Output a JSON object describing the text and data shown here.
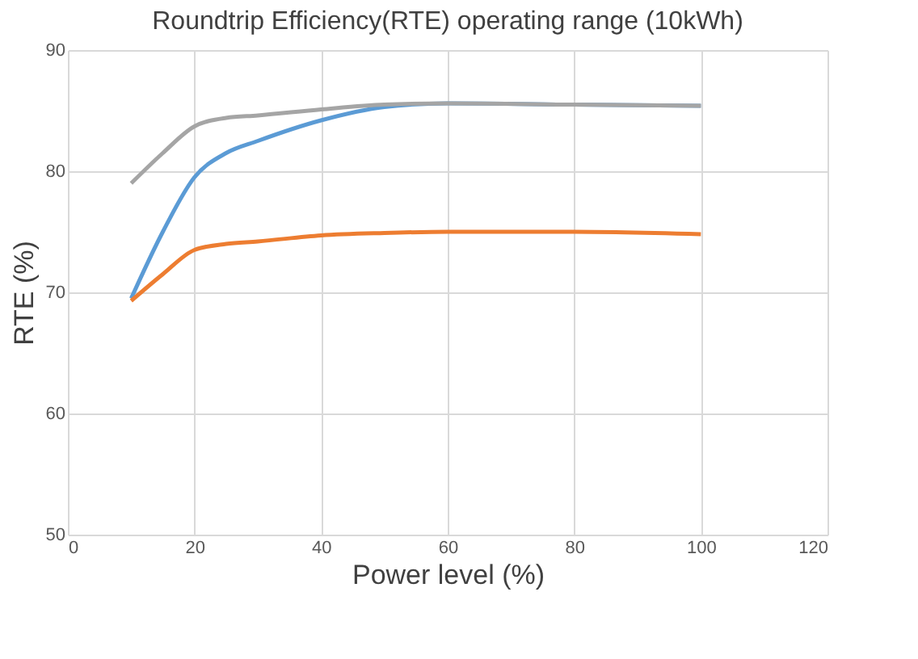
{
  "chart_data": {
    "type": "line",
    "title": "Roundtrip Efficiency(RTE) operating range (10kWh)",
    "xlabel": "Power level (%)",
    "ylabel": "RTE (%)",
    "x": [
      10,
      15,
      20,
      25,
      30,
      40,
      50,
      60,
      80,
      100
    ],
    "series": [
      {
        "color": "#5b9bd5",
        "values": [
          69.5,
          75,
          79.5,
          81.5,
          82.5,
          84.2,
          85.3,
          85.6,
          85.5,
          85.4
        ]
      },
      {
        "color": "#ed7d31",
        "values": [
          69.3,
          71.5,
          73.5,
          74,
          74.2,
          74.7,
          74.9,
          75,
          75,
          74.8
        ]
      },
      {
        "color": "#a5a5a5",
        "values": [
          79,
          81.5,
          83.7,
          84.4,
          84.6,
          85.1,
          85.5,
          85.6,
          85.5,
          85.4
        ]
      }
    ],
    "xlim": [
      0,
      120
    ],
    "xticks": [
      0,
      20,
      40,
      60,
      80,
      100,
      120
    ],
    "ylim": [
      50,
      90
    ],
    "yticks": [
      50,
      60,
      70,
      80,
      90
    ],
    "grid": true,
    "legend": false,
    "marker": "none",
    "line_style": "solid"
  }
}
